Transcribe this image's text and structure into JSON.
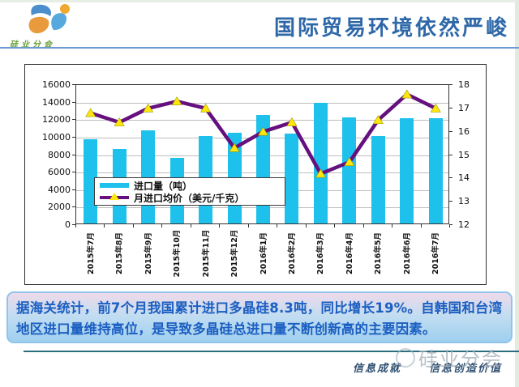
{
  "header": {
    "logo_text": "硅业分会",
    "title": "国际贸易环境依然严峻"
  },
  "chart_data": {
    "type": "bar",
    "subtype": "combo-bar-line-dual-axis",
    "categories": [
      "2015年7月",
      "2015年8月",
      "2015年9月",
      "2015年10月",
      "2015年11月",
      "2015年12月",
      "2016年1月",
      "2016年2月",
      "2016年3月",
      "2016年4月",
      "2016年5月",
      "2016年6月",
      "2016年7月"
    ],
    "series": [
      {
        "name": "进口量（吨）",
        "type": "bar",
        "axis": "left",
        "color": "#1ec0ec",
        "values": [
          9600,
          8500,
          10600,
          7500,
          10000,
          10400,
          12400,
          10300,
          13800,
          12100,
          10000,
          12000,
          12000
        ]
      },
      {
        "name": "月进口均价（美元/千克）",
        "type": "line",
        "axis": "right",
        "color": "#65107e",
        "marker": "triangle",
        "marker_color": "#ffe60a",
        "values": [
          16.8,
          16.4,
          17.0,
          17.3,
          17.0,
          15.3,
          16.0,
          16.4,
          14.2,
          14.7,
          16.5,
          17.6,
          17.0
        ]
      }
    ],
    "left_axis": {
      "min": 0,
      "max": 16000,
      "step": 2000,
      "ticks": [
        "16000",
        "14000",
        "12000",
        "10000",
        "8000",
        "6000",
        "4000",
        "2000",
        "0"
      ]
    },
    "right_axis": {
      "min": 12,
      "max": 18,
      "step": 1,
      "ticks": [
        "18",
        "17",
        "16",
        "15",
        "14",
        "13",
        "12"
      ]
    },
    "grid": true,
    "legend_position": "inside-lower-left",
    "title": ""
  },
  "summary_box": {
    "text": "据海关统计，前7个月我国累计进口多晶硅8.3吨，同比增长19%。自韩国和台湾地区进口量维持高位，是导致多晶硅总进口量不断创新高的主要因素。"
  },
  "footer": {
    "slogan_left": "信息成就",
    "slogan_right": "信息创造价值",
    "watermark": "硅业分会"
  }
}
